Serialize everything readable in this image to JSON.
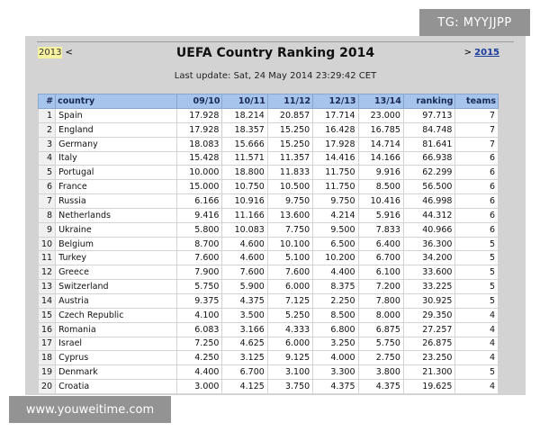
{
  "nav": {
    "prev_year": "2013",
    "prev_arrow": "<",
    "next_arrow": ">",
    "next_year": "2015"
  },
  "title": "UEFA Country Ranking 2014",
  "last_update": "Last update: Sat, 24 May 2014 23:29:42 CET",
  "table": {
    "headers": [
      "#",
      "country",
      "09/10",
      "10/11",
      "11/12",
      "12/13",
      "13/14",
      "ranking",
      "teams"
    ],
    "rows": [
      [
        "1",
        "Spain",
        "17.928",
        "18.214",
        "20.857",
        "17.714",
        "23.000",
        "97.713",
        "7"
      ],
      [
        "2",
        "England",
        "17.928",
        "18.357",
        "15.250",
        "16.428",
        "16.785",
        "84.748",
        "7"
      ],
      [
        "3",
        "Germany",
        "18.083",
        "15.666",
        "15.250",
        "17.928",
        "14.714",
        "81.641",
        "7"
      ],
      [
        "4",
        "Italy",
        "15.428",
        "11.571",
        "11.357",
        "14.416",
        "14.166",
        "66.938",
        "6"
      ],
      [
        "5",
        "Portugal",
        "10.000",
        "18.800",
        "11.833",
        "11.750",
        "9.916",
        "62.299",
        "6"
      ],
      [
        "6",
        "France",
        "15.000",
        "10.750",
        "10.500",
        "11.750",
        "8.500",
        "56.500",
        "6"
      ],
      [
        "7",
        "Russia",
        "6.166",
        "10.916",
        "9.750",
        "9.750",
        "10.416",
        "46.998",
        "6"
      ],
      [
        "8",
        "Netherlands",
        "9.416",
        "11.166",
        "13.600",
        "4.214",
        "5.916",
        "44.312",
        "6"
      ],
      [
        "9",
        "Ukraine",
        "5.800",
        "10.083",
        "7.750",
        "9.500",
        "7.833",
        "40.966",
        "6"
      ],
      [
        "10",
        "Belgium",
        "8.700",
        "4.600",
        "10.100",
        "6.500",
        "6.400",
        "36.300",
        "5"
      ],
      [
        "11",
        "Turkey",
        "7.600",
        "4.600",
        "5.100",
        "10.200",
        "6.700",
        "34.200",
        "5"
      ],
      [
        "12",
        "Greece",
        "7.900",
        "7.600",
        "7.600",
        "4.400",
        "6.100",
        "33.600",
        "5"
      ],
      [
        "13",
        "Switzerland",
        "5.750",
        "5.900",
        "6.000",
        "8.375",
        "7.200",
        "33.225",
        "5"
      ],
      [
        "14",
        "Austria",
        "9.375",
        "4.375",
        "7.125",
        "2.250",
        "7.800",
        "30.925",
        "5"
      ],
      [
        "15",
        "Czech Republic",
        "4.100",
        "3.500",
        "5.250",
        "8.500",
        "8.000",
        "29.350",
        "4"
      ],
      [
        "16",
        "Romania",
        "6.083",
        "3.166",
        "4.333",
        "6.800",
        "6.875",
        "27.257",
        "4"
      ],
      [
        "17",
        "Israel",
        "7.250",
        "4.625",
        "6.000",
        "3.250",
        "5.750",
        "26.875",
        "4"
      ],
      [
        "18",
        "Cyprus",
        "4.250",
        "3.125",
        "9.125",
        "4.000",
        "2.750",
        "23.250",
        "4"
      ],
      [
        "19",
        "Denmark",
        "4.400",
        "6.700",
        "3.100",
        "3.300",
        "3.800",
        "21.300",
        "5"
      ],
      [
        "20",
        "Croatia",
        "3.000",
        "4.125",
        "3.750",
        "4.375",
        "4.375",
        "19.625",
        "4"
      ]
    ]
  },
  "watermarks": {
    "tg": "TG: MYYJJPP",
    "url": "www.youweitime.com"
  },
  "colors": {
    "header_bg": "#a6c4ec",
    "panel_bg": "#d3d3d3",
    "prev_year_highlight": "#f7f2a0",
    "link": "#1a3c9c"
  }
}
